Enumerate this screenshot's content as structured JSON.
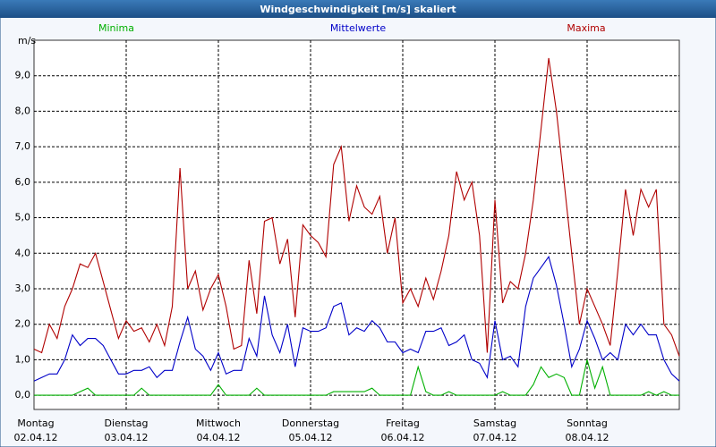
{
  "chart_data": {
    "type": "line",
    "title": "Windgeschwindigkeit [m/s] skaliert",
    "ylabel": "m/s",
    "categories": [
      [
        "Montag",
        "02.04.12"
      ],
      null,
      null,
      null,
      null,
      null,
      null,
      null,
      null,
      null,
      null,
      null,
      [
        "Dienstag",
        "03.04.12"
      ],
      null,
      null,
      null,
      null,
      null,
      null,
      null,
      null,
      null,
      null,
      null,
      [
        "Mittwoch",
        "04.04.12"
      ],
      null,
      null,
      null,
      null,
      null,
      null,
      null,
      null,
      null,
      null,
      null,
      [
        "Donnerstag",
        "05.04.12"
      ],
      null,
      null,
      null,
      null,
      null,
      null,
      null,
      null,
      null,
      null,
      null,
      [
        "Freitag",
        "06.04.12"
      ],
      null,
      null,
      null,
      null,
      null,
      null,
      null,
      null,
      null,
      null,
      null,
      [
        "Samstag",
        "07.04.12"
      ],
      null,
      null,
      null,
      null,
      null,
      null,
      null,
      null,
      null,
      null,
      null,
      [
        "Sonntag",
        "08.04.12"
      ],
      null,
      null,
      null,
      null,
      null,
      null,
      null,
      null,
      null,
      null,
      null,
      null
    ],
    "series": [
      {
        "name": "Minima",
        "color": "#00b000",
        "values": [
          0,
          0,
          0,
          0,
          0,
          0,
          0.1,
          0.2,
          0,
          0,
          0,
          0,
          0,
          0,
          0.2,
          0,
          0,
          0,
          0,
          0,
          0,
          0,
          0,
          0,
          0.3,
          0,
          0,
          0,
          0,
          0.2,
          0,
          0,
          0,
          0,
          0,
          0,
          0,
          0,
          0,
          0.1,
          0.1,
          0.1,
          0.1,
          0.1,
          0.2,
          0,
          0,
          0,
          0,
          0,
          0.8,
          0.1,
          0,
          0,
          0.1,
          0,
          0,
          0,
          0,
          0,
          0,
          0.1,
          0,
          0,
          0,
          0.3,
          0.8,
          0.5,
          0.6,
          0.5,
          0,
          0,
          1.0,
          0.2,
          0.8,
          0,
          0,
          0,
          0,
          0,
          0.1,
          0,
          0.1,
          0,
          0
        ]
      },
      {
        "name": "Mittelwerte",
        "color": "#0000c8",
        "values": [
          0.4,
          0.5,
          0.6,
          0.6,
          1.0,
          1.7,
          1.4,
          1.6,
          1.6,
          1.4,
          1.0,
          0.6,
          0.6,
          0.7,
          0.7,
          0.8,
          0.5,
          0.7,
          0.7,
          1.5,
          2.2,
          1.3,
          1.1,
          0.7,
          1.2,
          0.6,
          0.7,
          0.7,
          1.6,
          1.1,
          2.8,
          1.7,
          1.2,
          2.0,
          0.8,
          1.9,
          1.8,
          1.8,
          1.9,
          2.5,
          2.6,
          1.7,
          1.9,
          1.8,
          2.1,
          1.9,
          1.5,
          1.5,
          1.2,
          1.3,
          1.2,
          1.8,
          1.8,
          1.9,
          1.4,
          1.5,
          1.7,
          1.0,
          0.9,
          0.5,
          2.1,
          1.0,
          1.1,
          0.8,
          2.5,
          3.3,
          3.6,
          3.9,
          3.1,
          2.0,
          0.8,
          1.3,
          2.1,
          1.6,
          1.0,
          1.2,
          1.0,
          2.0,
          1.7,
          2.0,
          1.7,
          1.7,
          1.0,
          0.6,
          0.4
        ]
      },
      {
        "name": "Maxima",
        "color": "#b00000",
        "values": [
          1.3,
          1.2,
          2.0,
          1.6,
          2.5,
          3.0,
          3.7,
          3.6,
          4.0,
          3.2,
          2.4,
          1.6,
          2.1,
          1.8,
          1.9,
          1.5,
          2.0,
          1.4,
          2.5,
          6.4,
          3.0,
          3.5,
          2.4,
          3.0,
          3.4,
          2.5,
          1.3,
          1.4,
          3.8,
          2.3,
          4.9,
          5.0,
          3.7,
          4.4,
          2.2,
          4.8,
          4.5,
          4.3,
          3.9,
          6.5,
          7.0,
          4.9,
          5.9,
          5.3,
          5.1,
          5.6,
          4.0,
          5.0,
          2.6,
          3.0,
          2.5,
          3.3,
          2.7,
          3.5,
          4.5,
          6.3,
          5.5,
          6.0,
          4.5,
          1.2,
          5.5,
          2.6,
          3.2,
          3.0,
          4.0,
          5.5,
          7.5,
          9.5,
          8.0,
          6.0,
          4.0,
          2.0,
          3.0,
          2.5,
          2.0,
          1.4,
          3.5,
          5.8,
          4.5,
          5.8,
          5.3,
          5.8,
          2.0,
          1.7,
          1.1
        ]
      }
    ],
    "ylim": [
      -0.4,
      10
    ],
    "yticks": [
      {
        "value": 0,
        "label": "0,0"
      },
      {
        "value": 1,
        "label": "1,0"
      },
      {
        "value": 2,
        "label": "2,0"
      },
      {
        "value": 3,
        "label": "3,0"
      },
      {
        "value": 4,
        "label": "4,0"
      },
      {
        "value": 5,
        "label": "5,0"
      },
      {
        "value": 6,
        "label": "6,0"
      },
      {
        "value": 7,
        "label": "7,0"
      },
      {
        "value": 8,
        "label": "8,0"
      },
      {
        "value": 9,
        "label": "9,0"
      }
    ],
    "grid": true
  }
}
